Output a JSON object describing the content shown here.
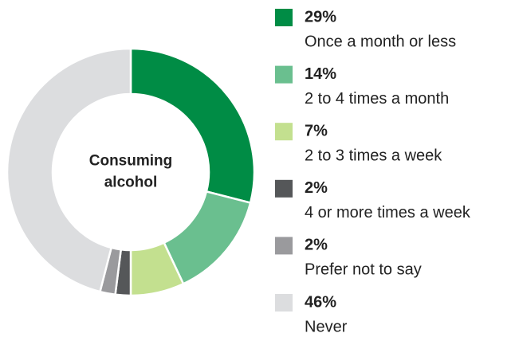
{
  "chart_data": {
    "type": "donut",
    "center_label": [
      "Consuming",
      "alcohol"
    ],
    "categories": [
      "Once a month or less",
      "2 to 4 times a month",
      "2 to 3 times a week",
      "4 or more times a week",
      "Prefer not to say",
      "Never"
    ],
    "values": [
      29,
      14,
      7,
      2,
      2,
      46
    ],
    "value_labels": [
      "29%",
      "14%",
      "7%",
      "2%",
      "2%",
      "46%"
    ],
    "colors": [
      "#008c45",
      "#6abf8f",
      "#c3e08f",
      "#555759",
      "#9a9a9d",
      "#dcdddf"
    ]
  }
}
